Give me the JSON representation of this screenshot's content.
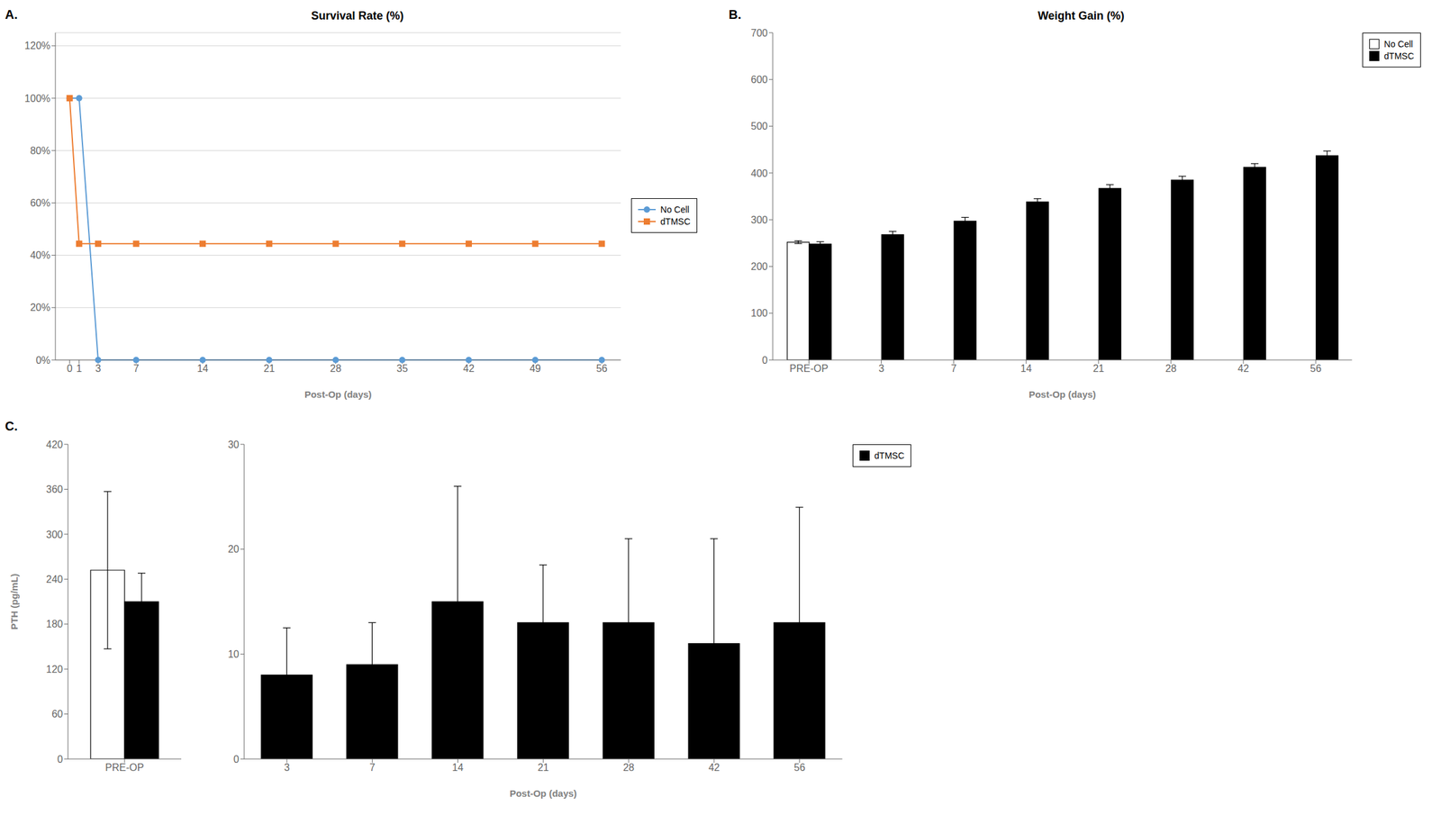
{
  "chart_data": [
    {
      "type": "line",
      "title": "Survival Rate (%)",
      "annotations": [
        "A."
      ],
      "x_label": "Post-Op (days)",
      "x": [
        0,
        1,
        3,
        7,
        14,
        21,
        28,
        35,
        42,
        49,
        56
      ],
      "xlim": [
        -1.5,
        58
      ],
      "xticks": [
        0,
        1,
        3,
        7,
        14,
        21,
        28,
        35,
        42,
        49,
        56
      ],
      "ylim": [
        0,
        1.25
      ],
      "yticks": [
        {
          "value": 0.0,
          "label": "0%"
        },
        {
          "value": 0.2,
          "label": "20%"
        },
        {
          "value": 0.4,
          "label": "40%"
        },
        {
          "value": 0.6,
          "label": "60%"
        },
        {
          "value": 0.8,
          "label": "80%"
        },
        {
          "value": 1.0,
          "label": "100%"
        },
        {
          "value": 1.2,
          "label": "120%"
        }
      ],
      "grid": true,
      "legend": "right",
      "series": [
        {
          "name": "No Cell",
          "color": "#5b9bd5",
          "marker": "circle",
          "values": [
            1.0,
            1.0,
            0.0,
            0.0,
            0.0,
            0.0,
            0.0,
            0.0,
            0.0,
            0.0,
            0.0
          ]
        },
        {
          "name": "dTMSC",
          "color": "#ed7d31",
          "marker": "square",
          "values": [
            1.0,
            0.444,
            0.444,
            0.444,
            0.444,
            0.444,
            0.444,
            0.444,
            0.444,
            0.444,
            0.444
          ]
        }
      ]
    },
    {
      "type": "bar",
      "title": "Weight Gain (%)",
      "annotations": [
        "B."
      ],
      "x_label": "Post-Op (days)",
      "categories": [
        "PRE-OP",
        "3",
        "7",
        "14",
        "21",
        "28",
        "42",
        "56"
      ],
      "ylim": [
        0,
        700
      ],
      "yticks": [
        0,
        100,
        200,
        300,
        400,
        500,
        600,
        700
      ],
      "grid": false,
      "legend": "upper right",
      "series": [
        {
          "name": "No Cell",
          "color": "#ffffff",
          "values": [
            252,
            0,
            0,
            0,
            0,
            0,
            0,
            0
          ],
          "errors": [
            3,
            0,
            0,
            0,
            0,
            0,
            0,
            0
          ]
        },
        {
          "name": "dTMSC",
          "color": "#000000",
          "values": [
            248,
            268,
            297,
            338,
            367,
            385,
            412,
            437
          ],
          "errors": [
            5,
            7,
            8,
            7,
            8,
            8,
            8,
            10
          ]
        }
      ]
    },
    {
      "type": "bar",
      "annotations": [
        "C."
      ],
      "y_label": "PTH (pg/mL)",
      "categories": [
        "PRE-OP"
      ],
      "ylim": [
        0,
        420
      ],
      "yticks": [
        0,
        60,
        120,
        180,
        240,
        300,
        360,
        420
      ],
      "grid": false,
      "series": [
        {
          "name": "No Cell",
          "color": "#ffffff",
          "values": [
            252
          ],
          "errors": [
            105
          ]
        },
        {
          "name": "dTMSC",
          "color": "#000000",
          "values": [
            210
          ],
          "errors": [
            38
          ]
        }
      ]
    },
    {
      "type": "bar",
      "x_label": "Post-Op (days)",
      "categories": [
        "3",
        "7",
        "14",
        "21",
        "28",
        "42",
        "56"
      ],
      "ylim": [
        0,
        30
      ],
      "yticks": [
        0,
        10,
        20,
        30
      ],
      "grid": false,
      "legend": "upper right",
      "series": [
        {
          "name": "dTMSC",
          "color": "#000000",
          "values": [
            8,
            9,
            15,
            13,
            13,
            11,
            13
          ],
          "errors": [
            4.5,
            4,
            11,
            5.5,
            8,
            10,
            11
          ]
        }
      ]
    }
  ]
}
